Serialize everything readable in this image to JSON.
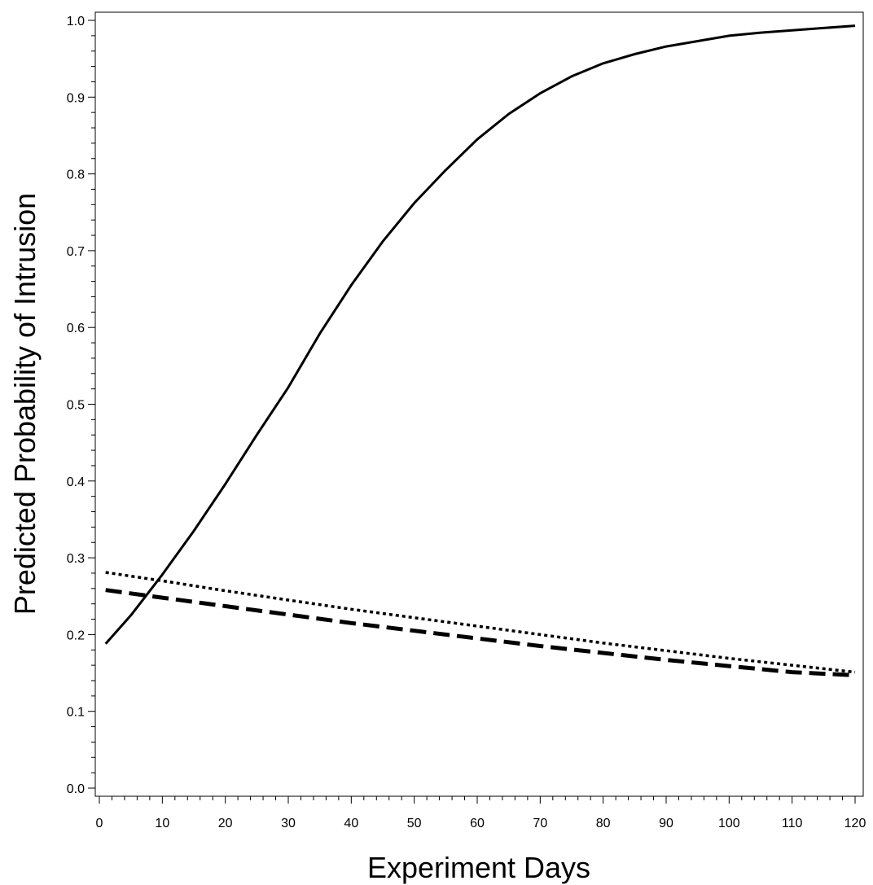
{
  "chart_data": {
    "type": "line",
    "title": "",
    "xlabel": "Experiment Days",
    "ylabel": "Predicted Probability of Intrusion",
    "xlim": [
      0,
      120
    ],
    "ylim": [
      0.0,
      1.0
    ],
    "x_ticks": [
      0,
      10,
      20,
      30,
      40,
      50,
      60,
      70,
      80,
      90,
      100,
      110,
      120
    ],
    "y_ticks": [
      0.0,
      0.1,
      0.2,
      0.3,
      0.4,
      0.5,
      0.6,
      0.7,
      0.8,
      0.9,
      1.0
    ],
    "x_tick_labels": [
      "0",
      "10",
      "20",
      "30",
      "40",
      "50",
      "60",
      "70",
      "80",
      "90",
      "100",
      "110",
      "120"
    ],
    "y_tick_labels": [
      "0.0",
      "0.1",
      "0.2",
      "0.3",
      "0.4",
      "0.5",
      "0.6",
      "0.7",
      "0.8",
      "0.9",
      "1.0"
    ],
    "grid": false,
    "legend": "none",
    "series": [
      {
        "style": "solid",
        "color": "#000000",
        "x": [
          1,
          5,
          10,
          15,
          20,
          25,
          30,
          35,
          40,
          45,
          50,
          55,
          60,
          65,
          70,
          75,
          80,
          85,
          90,
          95,
          100,
          105,
          110,
          115,
          120
        ],
        "y": [
          0.188,
          0.225,
          0.278,
          0.335,
          0.396,
          0.46,
          0.522,
          0.592,
          0.655,
          0.712,
          0.762,
          0.805,
          0.845,
          0.878,
          0.905,
          0.927,
          0.944,
          0.956,
          0.966,
          0.973,
          0.98,
          0.984,
          0.987,
          0.99,
          0.993
        ]
      },
      {
        "style": "dotted",
        "color": "#000000",
        "x": [
          1,
          10,
          20,
          30,
          40,
          50,
          60,
          70,
          80,
          90,
          100,
          110,
          120
        ],
        "y": [
          0.281,
          0.27,
          0.257,
          0.245,
          0.233,
          0.222,
          0.211,
          0.2,
          0.189,
          0.179,
          0.169,
          0.16,
          0.151
        ]
      },
      {
        "style": "dashed",
        "color": "#000000",
        "x": [
          1,
          10,
          20,
          30,
          40,
          50,
          60,
          70,
          80,
          90,
          100,
          110,
          120
        ],
        "y": [
          0.258,
          0.248,
          0.237,
          0.226,
          0.215,
          0.205,
          0.195,
          0.185,
          0.176,
          0.167,
          0.159,
          0.151,
          0.147
        ]
      }
    ]
  }
}
